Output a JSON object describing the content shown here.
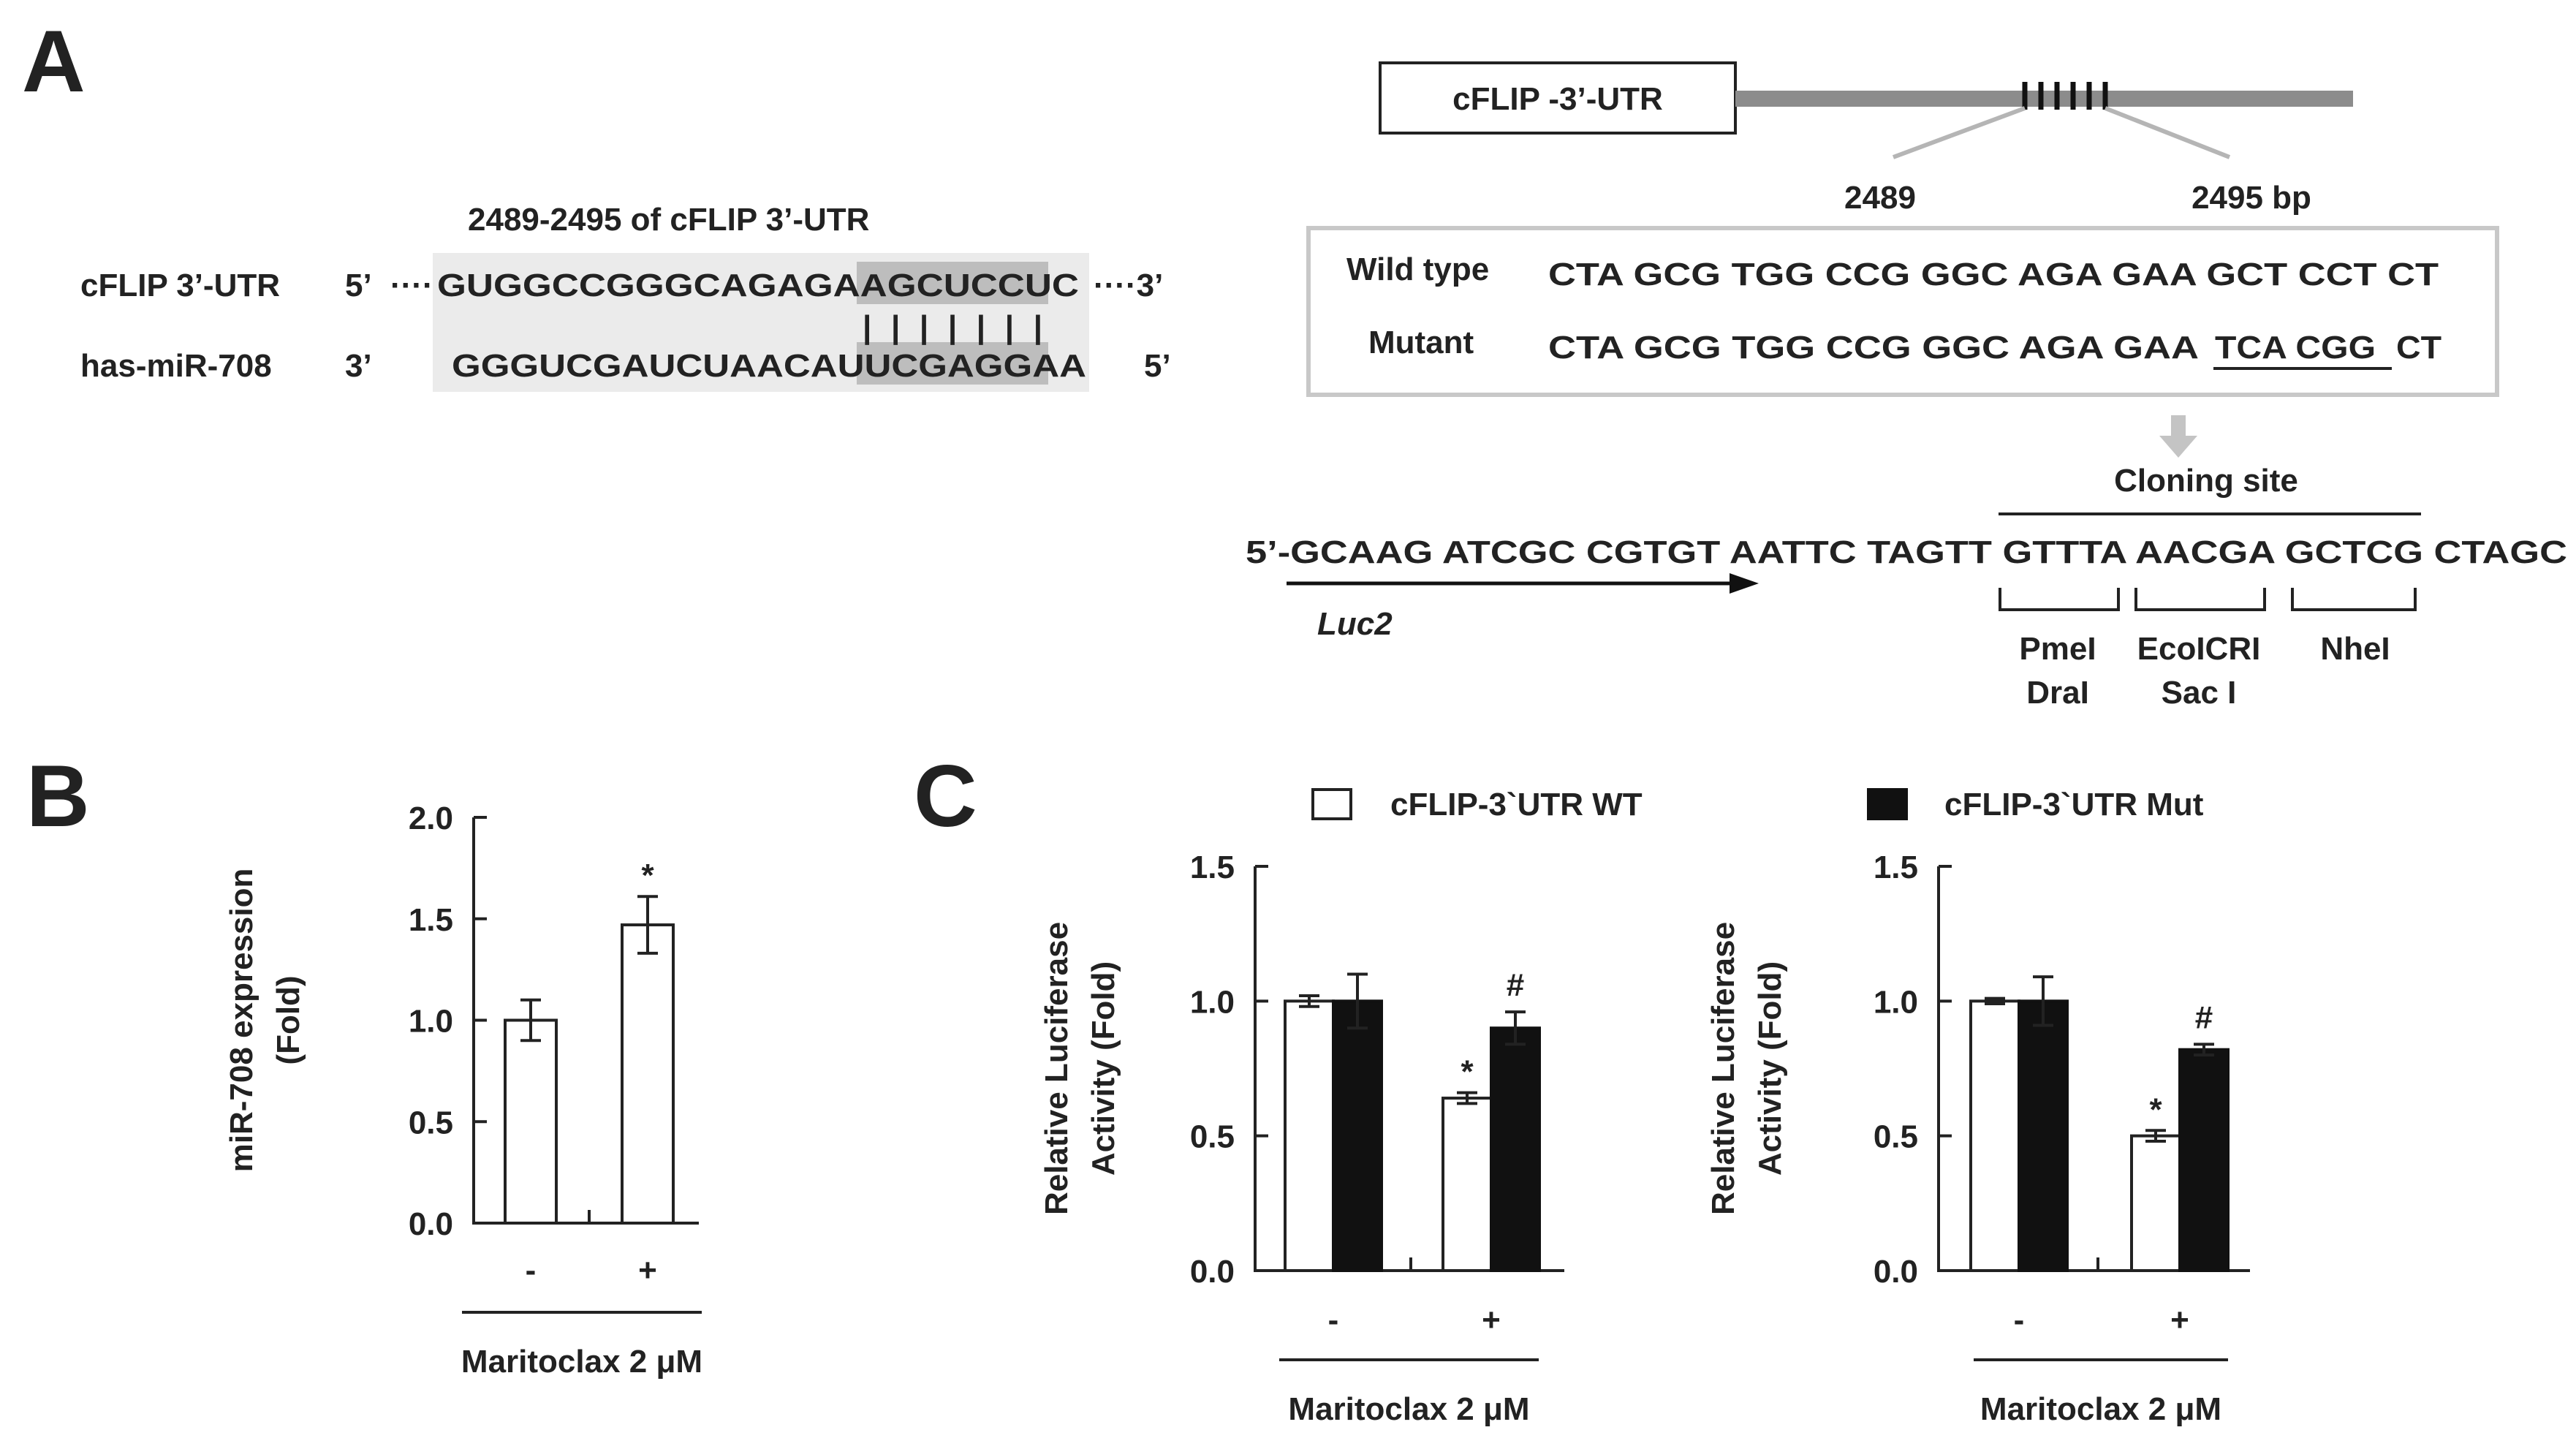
{
  "panel_a": {
    "letter": "A",
    "site_title": "2489-2495 of cFLIP 3’-UTR",
    "utr_label": "cFLIP 3’-UTR",
    "utr_5": "5’",
    "utr_dots": "····",
    "utr_seq_pre": "GUGGCCGGGCAGAGA",
    "utr_seq_site": "AGCUCCU",
    "utr_seq_post": "C",
    "utr_3": "····3’",
    "pairing": "|||||||",
    "mir_label": "has-miR-708",
    "mir_3": "3’",
    "mir_seq_pre": "GGGUCGAUCUAACAU",
    "mir_seq_site": "UCGAGGA",
    "mir_seq_post": "A",
    "mir_5": "5’",
    "gene_box": "cFLIP -3’-UTR",
    "pos_start": "2489",
    "pos_end": "2495 bp",
    "wt_label": "Wild type",
    "wt_seq": "CTA GCG  TGG CCG GGC AGA GAA GCT CCT CT",
    "mut_label": "Mutant",
    "mut_seq_pre": "CTA GCG  TGG CCG GGC AGA GAA",
    "mut_seq_changed": "TCA CGG",
    "mut_seq_post": "CT",
    "cloning_label": "Cloning site",
    "vector_seq": "5’-GCAAG ATCGC CGTGT AATTC TAGTT GTTTA AACGA GCTCG CTAGC",
    "luc_label": "Luc2",
    "site1_a": "PmeI",
    "site1_b": "DraI",
    "site2_a": "EcoICRI",
    "site2_b": "Sac I",
    "site3_a": "NheI"
  },
  "panel_b": {
    "letter": "B"
  },
  "panel_c": {
    "letter": "C",
    "legend_wt": "cFLIP-3`UTR WT",
    "legend_mut": "cFLIP-3`UTR Mut"
  },
  "chart_data": [
    {
      "type": "bar",
      "panel": "B",
      "ylabel_line1": "miR-708 expression",
      "ylabel_line2": "(Fold)",
      "categories": [
        "-",
        "+"
      ],
      "series": [
        {
          "values": [
            1.0,
            1.47
          ],
          "errors": [
            0.1,
            0.14
          ]
        }
      ],
      "annotations": [
        "",
        "*"
      ],
      "ylim": [
        0,
        2.0
      ],
      "yticks": [
        "0.0",
        "0.5",
        "1.0",
        "1.5",
        "2.0"
      ],
      "xlabel": "Maritoclax  2 μM"
    },
    {
      "type": "bar",
      "panel": "C-left",
      "ylabel_line1": "Relative Luciferase",
      "ylabel_line2": "Activity (Fold)",
      "categories": [
        "-",
        "+"
      ],
      "series": [
        {
          "name": "cFLIP-3`UTR WT",
          "values": [
            1.0,
            0.64
          ],
          "errors": [
            0.02,
            0.02
          ],
          "annotations": [
            "",
            "*"
          ]
        },
        {
          "name": "cFLIP-3`UTR Mut",
          "values": [
            1.0,
            0.9
          ],
          "errors": [
            0.1,
            0.06
          ],
          "annotations": [
            "",
            "#"
          ]
        }
      ],
      "ylim": [
        0,
        1.5
      ],
      "yticks": [
        "0.0",
        "0.5",
        "1.0",
        "1.5"
      ],
      "xlabel": "Maritoclax  2 μM"
    },
    {
      "type": "bar",
      "panel": "C-right",
      "ylabel_line1": "Relative Luciferase",
      "ylabel_line2": "Activity (Fold)",
      "categories": [
        "-",
        "+"
      ],
      "series": [
        {
          "name": "cFLIP-3`UTR WT",
          "values": [
            1.0,
            0.5
          ],
          "errors": [
            0.01,
            0.02
          ],
          "annotations": [
            "",
            "*"
          ]
        },
        {
          "name": "cFLIP-3`UTR Mut",
          "values": [
            1.0,
            0.82
          ],
          "errors": [
            0.09,
            0.02
          ],
          "annotations": [
            "",
            "#"
          ]
        }
      ],
      "ylim": [
        0,
        1.5
      ],
      "yticks": [
        "0.0",
        "0.5",
        "1.0",
        "1.5"
      ],
      "xlabel": "Maritoclax  2 μM"
    }
  ]
}
